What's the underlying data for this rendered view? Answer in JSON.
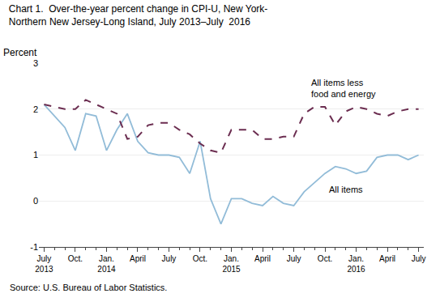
{
  "chart_data": {
    "type": "line",
    "title": "Chart 1.  Over-the-year percent change in CPI-U, New York-\nNorthern New Jersey-Long Island, July 2013–July  2016",
    "ylabel": "Percent",
    "source": "Source: U.S. Bureau of Labor Statistics.",
    "categories": [
      "July\n2013",
      null,
      null,
      "Oct.",
      null,
      null,
      "Jan.\n2014",
      null,
      null,
      "April",
      null,
      null,
      "July",
      null,
      null,
      "Oct.",
      null,
      null,
      "Jan.\n2015",
      null,
      null,
      "April",
      null,
      null,
      "July",
      null,
      null,
      "Oct.",
      null,
      null,
      "Jan.\n2016",
      null,
      null,
      "April",
      null,
      null,
      "July"
    ],
    "series": [
      {
        "name": "All items",
        "color": "#92bcd8",
        "line_style": "solid",
        "values": [
          2.1,
          1.85,
          1.6,
          1.1,
          1.9,
          1.85,
          1.1,
          1.55,
          1.9,
          1.3,
          1.05,
          1.0,
          1.0,
          0.95,
          0.6,
          1.3,
          0.05,
          -0.5,
          0.05,
          0.05,
          -0.05,
          -0.1,
          0.1,
          -0.05,
          -0.1,
          0.2,
          0.4,
          0.6,
          0.75,
          0.7,
          0.6,
          0.65,
          0.95,
          1.0,
          1.0,
          0.9,
          1.0
        ]
      },
      {
        "name": "All items less\nfood and energy",
        "color": "#6b2d50",
        "line_style": "dashed",
        "values": [
          2.1,
          2.05,
          2.0,
          2.0,
          2.2,
          2.1,
          2.0,
          1.9,
          1.35,
          1.4,
          1.65,
          1.7,
          1.7,
          1.55,
          1.45,
          1.25,
          1.1,
          1.05,
          1.55,
          1.55,
          1.55,
          1.35,
          1.35,
          1.4,
          1.4,
          1.9,
          2.05,
          2.05,
          1.65,
          1.95,
          2.05,
          2.0,
          1.9,
          1.85,
          1.95,
          2.0,
          2.0
        ]
      }
    ],
    "ylim": [
      -1,
      3
    ],
    "yticks": [
      -1,
      0,
      1,
      2,
      3
    ],
    "grid": true
  }
}
